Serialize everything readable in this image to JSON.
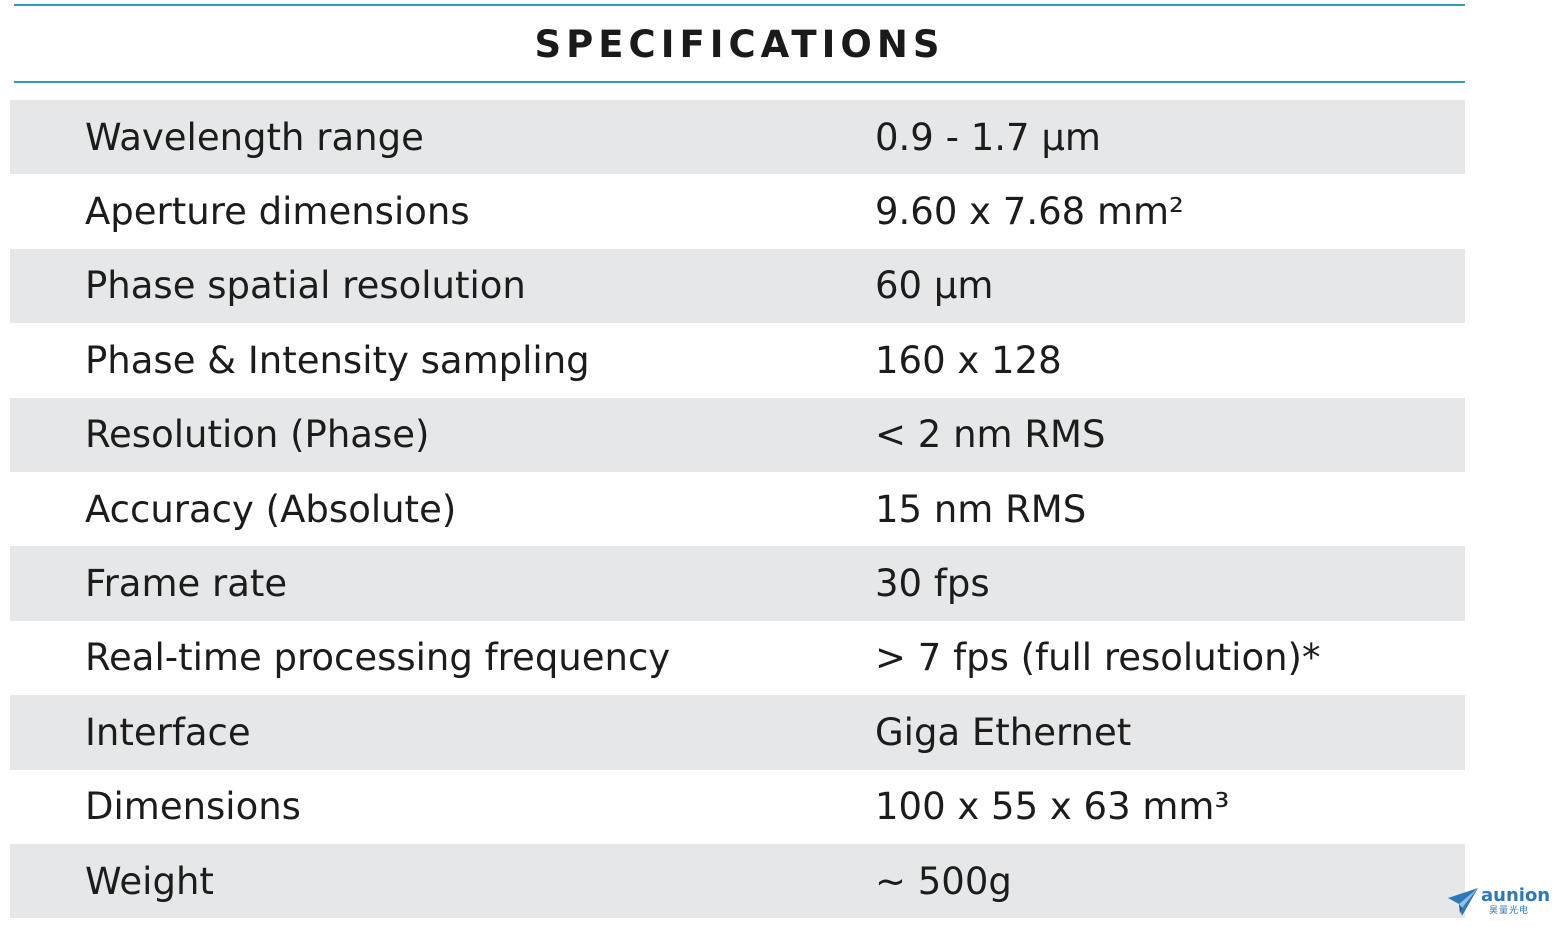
{
  "header": {
    "title": "SPECIFICATIONS"
  },
  "specs": [
    {
      "label": "Wavelength range",
      "value": "0.9 - 1.7 μm"
    },
    {
      "label": "Aperture dimensions",
      "value": "9.60 x 7.68 mm²"
    },
    {
      "label": "Phase spatial resolution",
      "value": "60 μm"
    },
    {
      "label": "Phase & Intensity sampling",
      "value": "160 x 128"
    },
    {
      "label": "Resolution (Phase)",
      "value": "< 2 nm RMS"
    },
    {
      "label": "Accuracy (Absolute)",
      "value": "15 nm RMS"
    },
    {
      "label": "Frame rate",
      "value": "30 fps"
    },
    {
      "label": "Real-time processing frequency",
      "value": "> 7 fps (full resolution)*"
    },
    {
      "label": "Interface",
      "value": "Giga Ethernet"
    },
    {
      "label": "Dimensions",
      "value": "100 x 55 x 63 mm³"
    },
    {
      "label": "Weight",
      "value": "~ 500g"
    }
  ],
  "watermark": {
    "brand": "aunion",
    "subtitle": "昊量光电"
  },
  "colors": {
    "rule": "#2a9fc4",
    "row_shade": "#e6e7e8",
    "text": "#1c1c1c",
    "logo": "#2f78b7"
  }
}
